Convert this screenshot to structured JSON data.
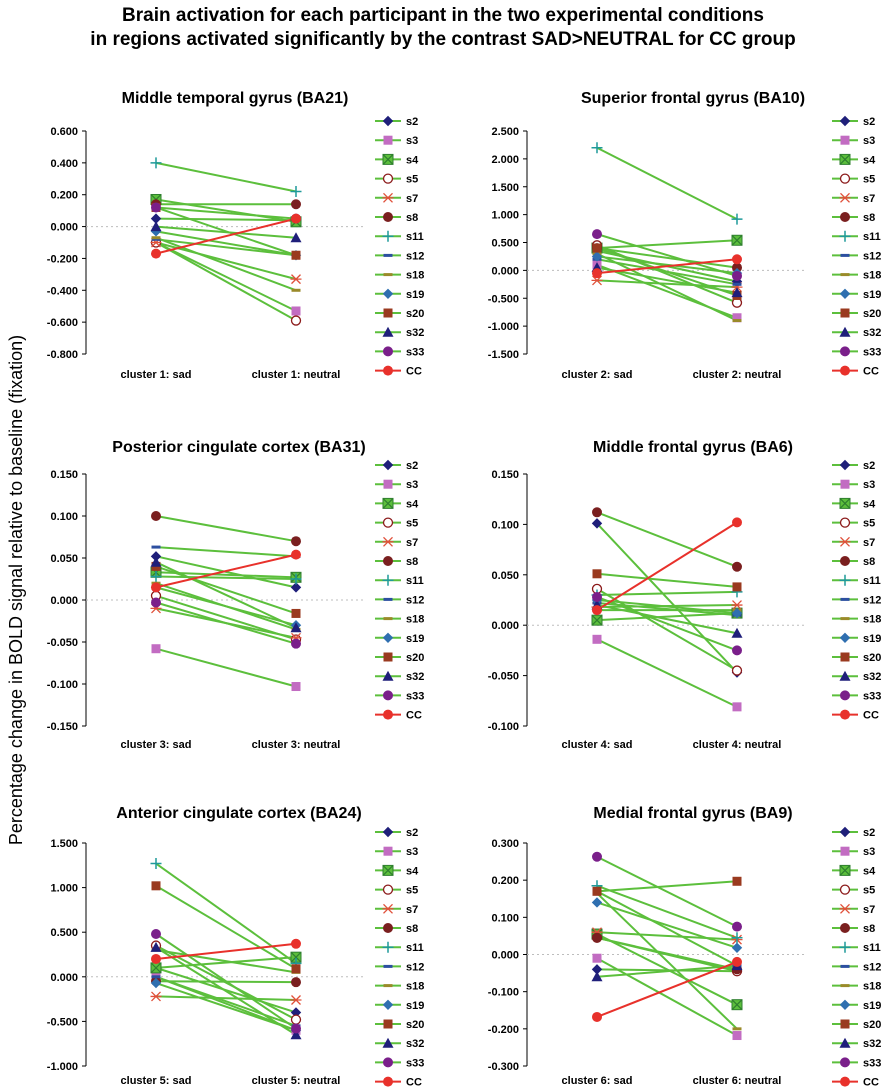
{
  "figure": {
    "title_line1": "Brain activation for each participant in the two experimental conditions",
    "title_line2": "in regions activated significantly by the contrast SAD>NEUTRAL for CC group",
    "ylabel": "Percentage change in BOLD signal relative to baseline (fixation)"
  },
  "colors": {
    "subject_line": "#5cbf3c",
    "group_line": "#e8312b",
    "zero_line": "#bdbdbd",
    "axis": "#000000"
  },
  "legend_entries": [
    {
      "label": "s2",
      "marker": "diamond-filled",
      "color": "#1f1f7a"
    },
    {
      "label": "s3",
      "marker": "square-filled",
      "color": "#c26cc2"
    },
    {
      "label": "s4",
      "marker": "square-x",
      "color": "#3aa13a"
    },
    {
      "label": "s5",
      "marker": "circle-open",
      "color": "#8b1a1a"
    },
    {
      "label": "s7",
      "marker": "asterisk",
      "color": "#e0503a"
    },
    {
      "label": "s8",
      "marker": "circle-filled",
      "color": "#7a1f1f"
    },
    {
      "label": "s11",
      "marker": "plus",
      "color": "#1f9a9a"
    },
    {
      "label": "s12",
      "marker": "dash",
      "color": "#2c4fa0"
    },
    {
      "label": "s18",
      "marker": "dash",
      "color": "#9a8a2a"
    },
    {
      "label": "s19",
      "marker": "diamond-filled",
      "color": "#2f6fb0"
    },
    {
      "label": "s20",
      "marker": "square-filled",
      "color": "#9a3a1f"
    },
    {
      "label": "s32",
      "marker": "triangle",
      "color": "#1f1f7a"
    },
    {
      "label": "s33",
      "marker": "circle-filled",
      "color": "#7a1f8a"
    },
    {
      "label": "CC",
      "marker": "circle-filled",
      "color": "#e8312b"
    }
  ],
  "chart_data": [
    {
      "type": "line",
      "title": "Middle temporal gyrus (BA21)",
      "categories": [
        "cluster 1: sad",
        "cluster 1: neutral"
      ],
      "ylim": [
        -0.8,
        0.6
      ],
      "yticks": [
        "0.600",
        "0.400",
        "0.200",
        "0.000",
        "-0.200",
        "-0.400",
        "-0.600",
        "-0.800"
      ],
      "series": [
        {
          "name": "s2",
          "values": [
            0.05,
            0.04
          ]
        },
        {
          "name": "s3",
          "values": [
            -0.1,
            -0.53
          ]
        },
        {
          "name": "s4",
          "values": [
            0.17,
            0.03
          ]
        },
        {
          "name": "s5",
          "values": [
            -0.1,
            -0.59
          ]
        },
        {
          "name": "s7",
          "values": [
            -0.1,
            -0.33
          ]
        },
        {
          "name": "s8",
          "values": [
            0.14,
            0.14
          ]
        },
        {
          "name": "s11",
          "values": [
            0.4,
            0.22
          ]
        },
        {
          "name": "s12",
          "values": [
            -0.08,
            -0.18
          ]
        },
        {
          "name": "s18",
          "values": [
            -0.07,
            -0.4
          ]
        },
        {
          "name": "s19",
          "values": [
            -0.03,
            -0.18
          ]
        },
        {
          "name": "s20",
          "values": [
            0.12,
            -0.18
          ]
        },
        {
          "name": "s32",
          "values": [
            0.0,
            -0.07
          ]
        },
        {
          "name": "s33",
          "values": [
            0.12,
            0.05
          ]
        },
        {
          "name": "CC",
          "values": [
            -0.17,
            0.05
          ]
        }
      ]
    },
    {
      "type": "line",
      "title": "Superior frontal gyrus (BA10)",
      "categories": [
        "cluster 2: sad",
        "cluster 2: neutral"
      ],
      "ylim": [
        -1.5,
        2.5
      ],
      "yticks": [
        "2.500",
        "2.000",
        "1.500",
        "1.000",
        "0.500",
        "0.000",
        "-0.500",
        "-1.000",
        "-1.500"
      ],
      "series": [
        {
          "name": "s2",
          "values": [
            0.35,
            -0.2
          ]
        },
        {
          "name": "s3",
          "values": [
            0.1,
            -0.85
          ]
        },
        {
          "name": "s4",
          "values": [
            0.4,
            0.54
          ]
        },
        {
          "name": "s5",
          "values": [
            0.45,
            -0.58
          ]
        },
        {
          "name": "s7",
          "values": [
            -0.18,
            -0.3
          ]
        },
        {
          "name": "s8",
          "values": [
            0.4,
            0.05
          ]
        },
        {
          "name": "s11",
          "values": [
            2.2,
            0.92
          ]
        },
        {
          "name": "s12",
          "values": [
            0.2,
            -0.25
          ]
        },
        {
          "name": "s18",
          "values": [
            0.3,
            -0.9
          ]
        },
        {
          "name": "s19",
          "values": [
            0.25,
            -0.05
          ]
        },
        {
          "name": "s20",
          "values": [
            0.4,
            -0.45
          ]
        },
        {
          "name": "s32",
          "values": [
            0.05,
            -0.4
          ]
        },
        {
          "name": "s33",
          "values": [
            0.65,
            -0.1
          ]
        },
        {
          "name": "CC",
          "values": [
            -0.05,
            0.2
          ]
        }
      ]
    },
    {
      "type": "line",
      "title": "Posterior cingulate cortex (BA31)",
      "categories": [
        "cluster 3: sad",
        "cluster 3: neutral"
      ],
      "ylim": [
        -0.15,
        0.15
      ],
      "yticks": [
        "0.150",
        "0.100",
        "0.050",
        "0.000",
        "-0.050",
        "-0.100",
        "-0.150"
      ],
      "series": [
        {
          "name": "s2",
          "values": [
            0.052,
            0.015
          ]
        },
        {
          "name": "s3",
          "values": [
            -0.058,
            -0.103
          ]
        },
        {
          "name": "s4",
          "values": [
            0.033,
            0.027
          ]
        },
        {
          "name": "s5",
          "values": [
            0.005,
            -0.047
          ]
        },
        {
          "name": "s7",
          "values": [
            -0.01,
            -0.045
          ]
        },
        {
          "name": "s8",
          "values": [
            0.1,
            0.07
          ]
        },
        {
          "name": "s11",
          "values": [
            0.028,
            0.025
          ]
        },
        {
          "name": "s12",
          "values": [
            0.063,
            0.052
          ]
        },
        {
          "name": "s18",
          "values": [
            0.02,
            -0.035
          ]
        },
        {
          "name": "s19",
          "values": [
            0.015,
            -0.03
          ]
        },
        {
          "name": "s20",
          "values": [
            0.04,
            -0.016
          ]
        },
        {
          "name": "s32",
          "values": [
            0.045,
            -0.033
          ]
        },
        {
          "name": "s33",
          "values": [
            -0.003,
            -0.052
          ]
        },
        {
          "name": "CC",
          "values": [
            0.015,
            0.054
          ]
        }
      ]
    },
    {
      "type": "line",
      "title": "Middle frontal gyrus (BA6)",
      "categories": [
        "cluster 4: sad",
        "cluster 4: neutral"
      ],
      "ylim": [
        -0.1,
        0.15
      ],
      "yticks": [
        "0.150",
        "0.100",
        "0.050",
        "0.000",
        "-0.050",
        "-0.100"
      ],
      "series": [
        {
          "name": "s2",
          "values": [
            0.101,
            -0.047
          ]
        },
        {
          "name": "s3",
          "values": [
            -0.014,
            -0.081
          ]
        },
        {
          "name": "s4",
          "values": [
            0.005,
            0.012
          ]
        },
        {
          "name": "s5",
          "values": [
            0.036,
            -0.045
          ]
        },
        {
          "name": "s7",
          "values": [
            0.018,
            0.02
          ]
        },
        {
          "name": "s8",
          "values": [
            0.112,
            0.058
          ]
        },
        {
          "name": "s11",
          "values": [
            0.03,
            0.033
          ]
        },
        {
          "name": "s12",
          "values": [
            0.022,
            0.01
          ]
        },
        {
          "name": "s18",
          "values": [
            0.015,
            0.015
          ]
        },
        {
          "name": "s19",
          "values": [
            0.025,
            0.012
          ]
        },
        {
          "name": "s20",
          "values": [
            0.051,
            0.038
          ]
        },
        {
          "name": "s32",
          "values": [
            0.02,
            -0.008
          ]
        },
        {
          "name": "s33",
          "values": [
            0.028,
            -0.025
          ]
        },
        {
          "name": "CC",
          "values": [
            0.015,
            0.102
          ]
        }
      ]
    },
    {
      "type": "line",
      "title": "Anterior cingulate cortex (BA24)",
      "categories": [
        "cluster 5: sad",
        "cluster 5: neutral"
      ],
      "ylim": [
        -1.0,
        1.5
      ],
      "yticks": [
        "1.500",
        "1.000",
        "0.500",
        "0.000",
        "-0.500",
        "-1.000"
      ],
      "series": [
        {
          "name": "s2",
          "values": [
            0.1,
            -0.4
          ]
        },
        {
          "name": "s3",
          "values": [
            0.0,
            -0.6
          ]
        },
        {
          "name": "s4",
          "values": [
            0.1,
            0.22
          ]
        },
        {
          "name": "s5",
          "values": [
            0.35,
            -0.48
          ]
        },
        {
          "name": "s7",
          "values": [
            -0.22,
            -0.26
          ]
        },
        {
          "name": "s8",
          "values": [
            -0.05,
            -0.06
          ]
        },
        {
          "name": "s11",
          "values": [
            1.27,
            0.15
          ]
        },
        {
          "name": "s12",
          "values": [
            0.0,
            -0.55
          ]
        },
        {
          "name": "s18",
          "values": [
            0.3,
            0.05
          ]
        },
        {
          "name": "s19",
          "values": [
            -0.07,
            -0.6
          ]
        },
        {
          "name": "s20",
          "values": [
            1.02,
            0.09
          ]
        },
        {
          "name": "s32",
          "values": [
            0.33,
            -0.65
          ]
        },
        {
          "name": "s33",
          "values": [
            0.48,
            -0.58
          ]
        },
        {
          "name": "CC",
          "values": [
            0.2,
            0.37
          ]
        }
      ]
    },
    {
      "type": "line",
      "title": "Medial frontal gyrus (BA9)",
      "categories": [
        "cluster 6: sad",
        "cluster 6: neutral"
      ],
      "ylim": [
        -0.3,
        0.3
      ],
      "yticks": [
        "0.300",
        "0.200",
        "0.100",
        "0.000",
        "-0.100",
        "-0.200",
        "-0.300"
      ],
      "series": [
        {
          "name": "s2",
          "values": [
            -0.04,
            -0.045
          ]
        },
        {
          "name": "s3",
          "values": [
            -0.01,
            -0.218
          ]
        },
        {
          "name": "s4",
          "values": [
            0.055,
            -0.135
          ]
        },
        {
          "name": "s5",
          "values": [
            0.045,
            -0.045
          ]
        },
        {
          "name": "s7",
          "values": [
            0.06,
            0.04
          ]
        },
        {
          "name": "s8",
          "values": [
            0.045,
            -0.04
          ]
        },
        {
          "name": "s11",
          "values": [
            0.185,
            0.045
          ]
        },
        {
          "name": "s12",
          "values": [
            0.17,
            -0.03
          ]
        },
        {
          "name": "s18",
          "values": [
            0.165,
            -0.2
          ]
        },
        {
          "name": "s19",
          "values": [
            0.14,
            0.018
          ]
        },
        {
          "name": "s20",
          "values": [
            0.17,
            0.197
          ]
        },
        {
          "name": "s32",
          "values": [
            -0.06,
            -0.03
          ]
        },
        {
          "name": "s33",
          "values": [
            0.263,
            0.075
          ]
        },
        {
          "name": "CC",
          "values": [
            -0.168,
            -0.02
          ]
        }
      ]
    }
  ]
}
